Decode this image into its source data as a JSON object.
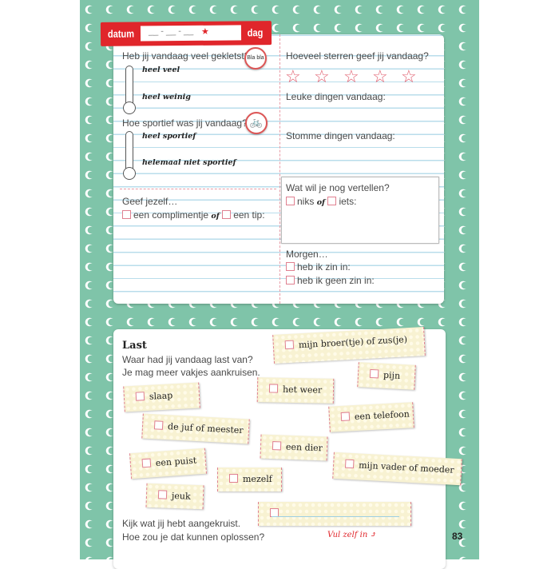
{
  "header": {
    "datum_label": "datum",
    "date_placeholder": "__ - __ - __",
    "star": "★",
    "dag_label": "dag"
  },
  "left": {
    "q1": "Heb jij vandaag veel gekletst?",
    "q1_icon": "speech-bubble-icon",
    "q1_icon_text": "Bla bla",
    "q1_high": "heel veel",
    "q1_low": "heel weinig",
    "q2": "Hoe sportief was jij vandaag?",
    "q2_icon": "bicycle-icon",
    "q2_high": "heel sportief",
    "q2_low": "helemaal niet sportief",
    "give": "Geef jezelf…",
    "compliment": "een complimentje",
    "of": "of",
    "tip": "een tip:"
  },
  "right": {
    "stars_q": "Hoeveel sterren geef jij vandaag?",
    "stars_count": 5,
    "fun": "Leuke dingen vandaag:",
    "stupid": "Stomme dingen vandaag:",
    "tell": "Wat wil je nog vertellen?",
    "nothing": "niks",
    "of": "of",
    "something": "iets:",
    "tomorrow": "Morgen…",
    "want": "heb ik zin in:",
    "dontwant": "heb ik geen zin in:"
  },
  "last": {
    "title": "Last",
    "line1": "Waar had jij vandaag last van?",
    "line2": "Je mag meer vakjes aankruisen.",
    "tags": [
      "mijn broer(tje) of zus(je)",
      "pijn",
      "het weer",
      "slaap",
      "een telefoon",
      "de juf of meester",
      "een dier",
      "een puist",
      "mijn vader of moeder",
      "mezelf",
      "jeuk",
      ""
    ],
    "bottom1": "Kijk wat jij hebt aangekruist.",
    "bottom2": "Hoe zou je dat kunnen oplossen?",
    "fill_in": "Vul zelf in ⤴"
  },
  "page_number": "83",
  "colors": {
    "teal": "#7fc4a9",
    "red": "#e0262b",
    "pink": "#e08090",
    "line_blue": "#b9ddeb"
  }
}
